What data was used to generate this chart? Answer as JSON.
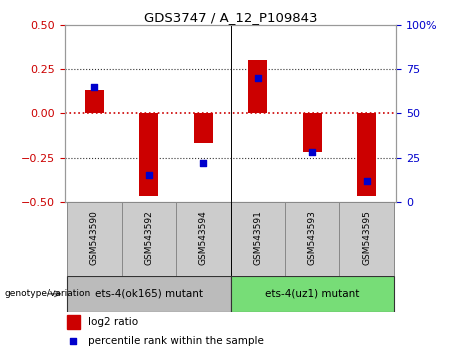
{
  "title": "GDS3747 / A_12_P109843",
  "samples": [
    "GSM543590",
    "GSM543592",
    "GSM543594",
    "GSM543591",
    "GSM543593",
    "GSM543595"
  ],
  "log2_ratio": [
    0.13,
    -0.47,
    -0.17,
    0.3,
    -0.22,
    -0.47
  ],
  "percentile_rank": [
    65,
    15,
    22,
    70,
    28,
    12
  ],
  "bar_color": "#cc0000",
  "dot_color": "#0000cc",
  "ylim_left": [
    -0.5,
    0.5
  ],
  "ylim_right": [
    0,
    100
  ],
  "yticks_left": [
    -0.5,
    -0.25,
    0.0,
    0.25,
    0.5
  ],
  "yticks_right": [
    0,
    25,
    50,
    75,
    100
  ],
  "hline_color": "#cc0000",
  "dotted_lines": [
    -0.25,
    0.25
  ],
  "groups": [
    {
      "label": "ets-4(ok165) mutant",
      "indices": [
        0,
        1,
        2
      ],
      "color": "#bbbbbb"
    },
    {
      "label": "ets-4(uz1) mutant",
      "indices": [
        3,
        4,
        5
      ],
      "color": "#77dd77"
    }
  ],
  "legend_log2_label": "log2 ratio",
  "legend_pct_label": "percentile rank within the sample",
  "genotype_label": "genotype/variation",
  "bg_color": "#ffffff",
  "tick_label_color_left": "#cc0000",
  "tick_label_color_right": "#0000cc",
  "bar_width": 0.35,
  "dot_size": 25,
  "sample_box_color": "#cccccc",
  "sample_box_edge": "#888888"
}
